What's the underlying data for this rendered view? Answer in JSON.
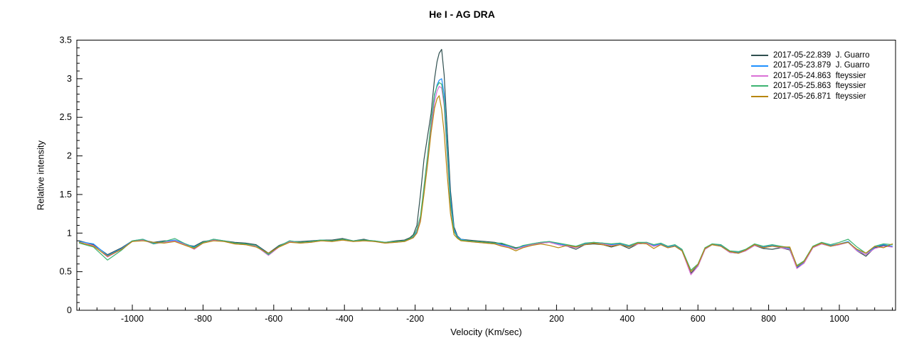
{
  "chart_data": {
    "type": "line",
    "title": "He I - AG DRA",
    "xlabel": "Velocity (Km/sec)",
    "ylabel": "Relative intensity",
    "xlim": [
      -1157,
      1159
    ],
    "ylim": [
      0,
      3.5
    ],
    "grid": false,
    "legend_position": "top-right",
    "frame": "full-box",
    "tick_direction": "inward",
    "x_major_ticks": [
      -1000,
      -800,
      -600,
      -400,
      -200,
      0,
      200,
      400,
      600,
      800,
      1000
    ],
    "x_tick_labels": [
      "-1000",
      "-800",
      "-600",
      "-400",
      "-200",
      "",
      "200",
      "400",
      "600",
      "800",
      "1000"
    ],
    "x_minor_step": 50,
    "y_major_ticks": [
      0,
      0.5,
      1,
      1.5,
      2,
      2.5,
      3,
      3.5
    ],
    "y_tick_labels": [
      "0",
      "0.5",
      "1",
      "1.5",
      "2",
      "2.5",
      "3",
      "3.5"
    ],
    "y_minor_step": 0.1,
    "axis_color": "#000000",
    "background_color": "#ffffff",
    "x": [
      -1150,
      -1110,
      -1070,
      -1030,
      -1000,
      -970,
      -940,
      -910,
      -880,
      -850,
      -825,
      -800,
      -770,
      -740,
      -710,
      -680,
      -650,
      -615,
      -585,
      -555,
      -525,
      -495,
      -465,
      -435,
      -405,
      -375,
      -345,
      -315,
      -285,
      -255,
      -230,
      -215,
      -205,
      -195,
      -185,
      -175,
      -165,
      -155,
      -145,
      -138,
      -132,
      -125,
      -118,
      -110,
      -100,
      -90,
      -80,
      -70,
      -50,
      -25,
      0,
      25,
      45,
      65,
      85,
      105,
      130,
      155,
      180,
      205,
      230,
      255,
      280,
      305,
      330,
      355,
      380,
      405,
      430,
      455,
      475,
      495,
      515,
      535,
      555,
      580,
      600,
      620,
      640,
      665,
      690,
      715,
      735,
      760,
      785,
      810,
      835,
      860,
      880,
      900,
      925,
      950,
      975,
      1000,
      1025,
      1050,
      1075,
      1100,
      1125,
      1150
    ],
    "series": [
      {
        "label": "2017-05-22.839  J. Guarro",
        "color": "#2F4F4F",
        "peak_intensity": 3.38,
        "values": [
          0.9,
          0.85,
          0.72,
          0.81,
          0.9,
          0.91,
          0.88,
          0.9,
          0.9,
          0.85,
          0.83,
          0.89,
          0.91,
          0.9,
          0.88,
          0.87,
          0.85,
          0.74,
          0.84,
          0.89,
          0.89,
          0.9,
          0.91,
          0.91,
          0.93,
          0.9,
          0.92,
          0.89,
          0.88,
          0.9,
          0.91,
          0.94,
          0.98,
          1.1,
          1.5,
          1.95,
          2.25,
          2.55,
          3.0,
          3.22,
          3.33,
          3.38,
          3.05,
          2.4,
          1.55,
          1.08,
          0.96,
          0.92,
          0.91,
          0.9,
          0.89,
          0.88,
          0.86,
          0.84,
          0.81,
          0.83,
          0.85,
          0.87,
          0.88,
          0.85,
          0.83,
          0.79,
          0.85,
          0.86,
          0.85,
          0.82,
          0.85,
          0.8,
          0.86,
          0.87,
          0.83,
          0.85,
          0.81,
          0.83,
          0.77,
          0.48,
          0.57,
          0.79,
          0.85,
          0.83,
          0.75,
          0.74,
          0.77,
          0.84,
          0.8,
          0.79,
          0.81,
          0.78,
          0.55,
          0.61,
          0.81,
          0.86,
          0.83,
          0.85,
          0.88,
          0.77,
          0.7,
          0.81,
          0.84,
          0.82
        ]
      },
      {
        "label": "2017-05-23.879  J. Guarro",
        "color": "#1E90FF",
        "peak_intensity": 3.0,
        "values": [
          0.89,
          0.86,
          0.71,
          0.8,
          0.9,
          0.92,
          0.87,
          0.89,
          0.91,
          0.86,
          0.82,
          0.88,
          0.92,
          0.9,
          0.87,
          0.86,
          0.84,
          0.73,
          0.83,
          0.9,
          0.88,
          0.89,
          0.91,
          0.9,
          0.92,
          0.9,
          0.91,
          0.9,
          0.88,
          0.89,
          0.9,
          0.92,
          0.95,
          1.02,
          1.2,
          1.55,
          1.95,
          2.4,
          2.78,
          2.92,
          2.98,
          3.0,
          2.8,
          2.2,
          1.45,
          1.05,
          0.95,
          0.92,
          0.9,
          0.89,
          0.88,
          0.87,
          0.85,
          0.83,
          0.8,
          0.83,
          0.86,
          0.88,
          0.89,
          0.86,
          0.84,
          0.82,
          0.86,
          0.88,
          0.87,
          0.85,
          0.86,
          0.83,
          0.87,
          0.88,
          0.84,
          0.86,
          0.82,
          0.84,
          0.78,
          0.5,
          0.58,
          0.8,
          0.86,
          0.84,
          0.76,
          0.75,
          0.78,
          0.85,
          0.82,
          0.84,
          0.82,
          0.8,
          0.56,
          0.62,
          0.82,
          0.87,
          0.84,
          0.86,
          0.89,
          0.78,
          0.72,
          0.82,
          0.85,
          0.83
        ]
      },
      {
        "label": "2017-05-24.863  fteyssier",
        "color": "#DA70D6",
        "peak_intensity": 2.9,
        "values": [
          0.88,
          0.84,
          0.69,
          0.79,
          0.89,
          0.91,
          0.86,
          0.88,
          0.9,
          0.85,
          0.79,
          0.87,
          0.91,
          0.89,
          0.86,
          0.85,
          0.83,
          0.71,
          0.82,
          0.89,
          0.87,
          0.88,
          0.9,
          0.89,
          0.91,
          0.89,
          0.9,
          0.89,
          0.87,
          0.88,
          0.89,
          0.92,
          0.94,
          1.0,
          1.18,
          1.52,
          1.92,
          2.35,
          2.7,
          2.84,
          2.9,
          2.88,
          2.65,
          2.05,
          1.35,
          1.02,
          0.94,
          0.91,
          0.89,
          0.88,
          0.87,
          0.86,
          0.84,
          0.82,
          0.79,
          0.82,
          0.85,
          0.87,
          0.88,
          0.85,
          0.83,
          0.81,
          0.85,
          0.87,
          0.86,
          0.84,
          0.85,
          0.82,
          0.86,
          0.87,
          0.83,
          0.85,
          0.81,
          0.83,
          0.77,
          0.46,
          0.57,
          0.79,
          0.85,
          0.83,
          0.75,
          0.74,
          0.77,
          0.84,
          0.81,
          0.83,
          0.81,
          0.79,
          0.54,
          0.61,
          0.81,
          0.86,
          0.83,
          0.85,
          0.88,
          0.77,
          0.72,
          0.8,
          0.83,
          0.82
        ]
      },
      {
        "label": "2017-05-25.863  fteyssier",
        "color": "#3CB371",
        "peak_intensity": 2.95,
        "values": [
          0.87,
          0.82,
          0.65,
          0.78,
          0.9,
          0.92,
          0.86,
          0.89,
          0.93,
          0.86,
          0.81,
          0.88,
          0.92,
          0.9,
          0.87,
          0.86,
          0.84,
          0.72,
          0.83,
          0.9,
          0.88,
          0.89,
          0.91,
          0.9,
          0.92,
          0.9,
          0.91,
          0.9,
          0.88,
          0.89,
          0.9,
          0.93,
          0.96,
          1.05,
          1.22,
          1.6,
          2.0,
          2.45,
          2.8,
          2.9,
          2.95,
          2.93,
          2.7,
          2.1,
          1.38,
          1.02,
          0.94,
          0.91,
          0.9,
          0.89,
          0.88,
          0.87,
          0.87,
          0.84,
          0.8,
          0.84,
          0.86,
          0.88,
          0.89,
          0.87,
          0.85,
          0.83,
          0.87,
          0.88,
          0.87,
          0.86,
          0.87,
          0.84,
          0.88,
          0.88,
          0.85,
          0.87,
          0.83,
          0.85,
          0.79,
          0.52,
          0.6,
          0.81,
          0.86,
          0.85,
          0.77,
          0.76,
          0.79,
          0.86,
          0.83,
          0.85,
          0.83,
          0.81,
          0.58,
          0.64,
          0.83,
          0.88,
          0.85,
          0.88,
          0.92,
          0.82,
          0.74,
          0.83,
          0.86,
          0.85
        ]
      },
      {
        "label": "2017-05-26.871  fteyssier",
        "color": "#B8860B",
        "peak_intensity": 2.78,
        "values": [
          0.88,
          0.83,
          0.7,
          0.79,
          0.89,
          0.9,
          0.88,
          0.87,
          0.89,
          0.84,
          0.8,
          0.87,
          0.9,
          0.89,
          0.86,
          0.85,
          0.82,
          0.74,
          0.82,
          0.88,
          0.87,
          0.88,
          0.9,
          0.89,
          0.91,
          0.89,
          0.9,
          0.89,
          0.87,
          0.88,
          0.89,
          0.92,
          0.94,
          1.0,
          1.15,
          1.5,
          1.88,
          2.3,
          2.62,
          2.74,
          2.78,
          2.6,
          2.3,
          1.8,
          1.25,
          0.98,
          0.93,
          0.9,
          0.89,
          0.88,
          0.87,
          0.86,
          0.83,
          0.81,
          0.77,
          0.81,
          0.84,
          0.86,
          0.84,
          0.81,
          0.84,
          0.82,
          0.85,
          0.87,
          0.85,
          0.83,
          0.85,
          0.82,
          0.87,
          0.86,
          0.8,
          0.85,
          0.81,
          0.83,
          0.77,
          0.5,
          0.59,
          0.8,
          0.85,
          0.83,
          0.76,
          0.74,
          0.78,
          0.85,
          0.81,
          0.83,
          0.82,
          0.82,
          0.57,
          0.63,
          0.82,
          0.87,
          0.83,
          0.86,
          0.88,
          0.79,
          0.74,
          0.83,
          0.81,
          0.86
        ]
      }
    ]
  }
}
